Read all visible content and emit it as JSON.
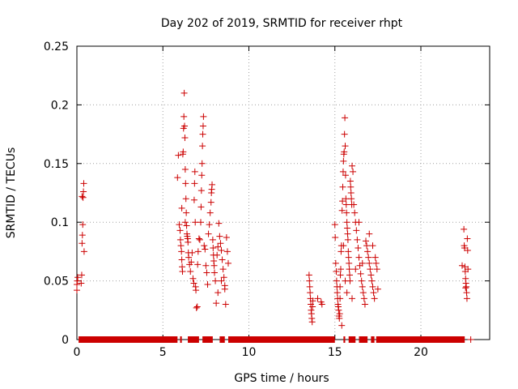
{
  "chart_data": {
    "type": "scatter",
    "title": "Day 202 of 2019, SRMTID for receiver rhpt",
    "xlabel": "GPS time / hours",
    "ylabel": "SRMTID / TECUs",
    "xlim": [
      0,
      24
    ],
    "ylim": [
      0,
      0.25
    ],
    "xticks": [
      0,
      5,
      10,
      15,
      20
    ],
    "xtick_labels": [
      "0",
      "5",
      "10",
      "15",
      "20"
    ],
    "yticks": [
      0,
      0.05,
      0.1,
      0.15,
      0.2,
      0.25
    ],
    "ytick_labels": [
      "0",
      "0.05",
      "0.1",
      "0.15",
      "0.2",
      "0.25"
    ],
    "grid": true,
    "marker": "plus",
    "color": "#cc0000",
    "series": [
      {
        "name": "SRMTID",
        "points": [
          [
            0.0,
            0.042
          ],
          [
            0.0,
            0.047
          ],
          [
            0.02,
            0.05
          ],
          [
            0.05,
            0.053
          ],
          [
            0.25,
            0.048
          ],
          [
            0.28,
            0.055
          ],
          [
            0.3,
            0.082
          ],
          [
            0.32,
            0.089
          ],
          [
            0.34,
            0.098
          ],
          [
            0.36,
            0.121
          ],
          [
            0.38,
            0.126
          ],
          [
            0.4,
            0.133
          ],
          [
            0.42,
            0.075
          ],
          [
            0.3,
            0.122
          ],
          [
            5.85,
            0.138
          ],
          [
            5.9,
            0.157
          ],
          [
            5.95,
            0.098
          ],
          [
            6.0,
            0.093
          ],
          [
            6.02,
            0.085
          ],
          [
            6.05,
            0.08
          ],
          [
            6.08,
            0.075
          ],
          [
            6.1,
            0.068
          ],
          [
            6.12,
            0.062
          ],
          [
            6.14,
            0.058
          ],
          [
            6.16,
            0.158
          ],
          [
            6.18,
            0.16
          ],
          [
            6.2,
            0.18
          ],
          [
            6.22,
            0.19
          ],
          [
            6.24,
            0.21
          ],
          [
            6.26,
            0.182
          ],
          [
            6.28,
            0.172
          ],
          [
            6.3,
            0.145
          ],
          [
            6.32,
            0.133
          ],
          [
            6.34,
            0.12
          ],
          [
            6.36,
            0.108
          ],
          [
            6.38,
            0.097
          ],
          [
            6.4,
            0.09
          ],
          [
            6.42,
            0.088
          ],
          [
            6.44,
            0.086
          ],
          [
            6.46,
            0.083
          ],
          [
            6.48,
            0.074
          ],
          [
            6.5,
            0.07
          ],
          [
            6.1,
            0.112
          ],
          [
            6.3,
            0.1
          ],
          [
            6.55,
            0.064
          ],
          [
            6.6,
            0.058
          ],
          [
            6.65,
            0.066
          ],
          [
            6.7,
            0.074
          ],
          [
            6.75,
            0.052
          ],
          [
            6.8,
            0.048
          ],
          [
            6.82,
            0.119
          ],
          [
            6.84,
            0.133
          ],
          [
            6.86,
            0.143
          ],
          [
            6.88,
            0.1
          ],
          [
            6.9,
            0.045
          ],
          [
            6.92,
            0.042
          ],
          [
            6.95,
            0.027
          ],
          [
            7.0,
            0.028
          ],
          [
            7.02,
            0.064
          ],
          [
            7.05,
            0.075
          ],
          [
            7.1,
            0.086
          ],
          [
            7.15,
            0.085
          ],
          [
            7.2,
            0.1
          ],
          [
            7.22,
            0.113
          ],
          [
            7.24,
            0.127
          ],
          [
            7.26,
            0.14
          ],
          [
            7.28,
            0.15
          ],
          [
            7.3,
            0.165
          ],
          [
            7.32,
            0.175
          ],
          [
            7.34,
            0.182
          ],
          [
            7.36,
            0.19
          ],
          [
            7.4,
            0.08
          ],
          [
            7.45,
            0.077
          ],
          [
            7.5,
            0.063
          ],
          [
            7.55,
            0.057
          ],
          [
            7.6,
            0.047
          ],
          [
            7.65,
            0.09
          ],
          [
            7.7,
            0.098
          ],
          [
            7.75,
            0.108
          ],
          [
            7.8,
            0.117
          ],
          [
            7.82,
            0.125
          ],
          [
            7.84,
            0.128
          ],
          [
            7.86,
            0.132
          ],
          [
            7.9,
            0.085
          ],
          [
            7.92,
            0.078
          ],
          [
            7.94,
            0.072
          ],
          [
            7.96,
            0.067
          ],
          [
            7.98,
            0.063
          ],
          [
            8.0,
            0.057
          ],
          [
            8.05,
            0.05
          ],
          [
            8.1,
            0.031
          ],
          [
            8.15,
            0.072
          ],
          [
            8.2,
            0.079
          ],
          [
            8.25,
            0.099
          ],
          [
            8.3,
            0.088
          ],
          [
            8.35,
            0.082
          ],
          [
            8.4,
            0.076
          ],
          [
            8.45,
            0.068
          ],
          [
            8.5,
            0.06
          ],
          [
            8.55,
            0.053
          ],
          [
            8.6,
            0.046
          ],
          [
            8.65,
            0.03
          ],
          [
            8.7,
            0.087
          ],
          [
            8.75,
            0.075
          ],
          [
            8.8,
            0.065
          ],
          [
            8.6,
            0.043
          ],
          [
            8.4,
            0.05
          ],
          [
            8.2,
            0.04
          ],
          [
            13.5,
            0.055
          ],
          [
            13.52,
            0.05
          ],
          [
            13.54,
            0.045
          ],
          [
            13.56,
            0.04
          ],
          [
            13.58,
            0.035
          ],
          [
            13.6,
            0.03
          ],
          [
            13.62,
            0.025
          ],
          [
            13.64,
            0.022
          ],
          [
            13.66,
            0.018
          ],
          [
            13.68,
            0.015
          ],
          [
            13.7,
            0.028
          ],
          [
            13.72,
            0.033
          ],
          [
            14.0,
            0.035
          ],
          [
            14.2,
            0.032
          ],
          [
            14.25,
            0.03
          ],
          [
            15.0,
            0.098
          ],
          [
            15.02,
            0.087
          ],
          [
            15.05,
            0.065
          ],
          [
            15.08,
            0.058
          ],
          [
            15.1,
            0.05
          ],
          [
            15.12,
            0.045
          ],
          [
            15.14,
            0.04
          ],
          [
            15.16,
            0.035
          ],
          [
            15.18,
            0.03
          ],
          [
            15.2,
            0.028
          ],
          [
            15.22,
            0.025
          ],
          [
            15.24,
            0.02
          ],
          [
            15.26,
            0.018
          ],
          [
            15.28,
            0.022
          ],
          [
            15.3,
            0.045
          ],
          [
            15.32,
            0.055
          ],
          [
            15.34,
            0.06
          ],
          [
            15.36,
            0.075
          ],
          [
            15.38,
            0.08
          ],
          [
            15.4,
            0.012
          ],
          [
            15.42,
            0.11
          ],
          [
            15.44,
            0.118
          ],
          [
            15.46,
            0.13
          ],
          [
            15.48,
            0.143
          ],
          [
            15.5,
            0.152
          ],
          [
            15.52,
            0.158
          ],
          [
            15.54,
            0.16
          ],
          [
            15.56,
            0.175
          ],
          [
            15.58,
            0.189
          ],
          [
            15.6,
            0.165
          ],
          [
            15.62,
            0.14
          ],
          [
            15.64,
            0.12
          ],
          [
            15.66,
            0.115
          ],
          [
            15.68,
            0.108
          ],
          [
            15.7,
            0.1
          ],
          [
            15.72,
            0.095
          ],
          [
            15.74,
            0.09
          ],
          [
            15.76,
            0.085
          ],
          [
            15.78,
            0.075
          ],
          [
            15.8,
            0.07
          ],
          [
            15.82,
            0.065
          ],
          [
            15.84,
            0.06
          ],
          [
            15.86,
            0.055
          ],
          [
            15.88,
            0.05
          ],
          [
            15.9,
            0.135
          ],
          [
            15.92,
            0.13
          ],
          [
            15.94,
            0.125
          ],
          [
            15.96,
            0.12
          ],
          [
            15.98,
            0.115
          ],
          [
            16.0,
            0.148
          ],
          [
            16.05,
            0.143
          ],
          [
            16.1,
            0.115
          ],
          [
            16.15,
            0.108
          ],
          [
            16.2,
            0.1
          ],
          [
            16.25,
            0.093
          ],
          [
            16.3,
            0.085
          ],
          [
            16.35,
            0.078
          ],
          [
            16.4,
            0.07
          ],
          [
            16.45,
            0.063
          ],
          [
            16.5,
            0.056
          ],
          [
            16.55,
            0.05
          ],
          [
            16.6,
            0.045
          ],
          [
            16.65,
            0.04
          ],
          [
            16.7,
            0.035
          ],
          [
            16.75,
            0.03
          ],
          [
            16.8,
            0.084
          ],
          [
            16.85,
            0.08
          ],
          [
            16.9,
            0.075
          ],
          [
            16.95,
            0.07
          ],
          [
            17.0,
            0.065
          ],
          [
            17.05,
            0.06
          ],
          [
            17.1,
            0.055
          ],
          [
            17.15,
            0.05
          ],
          [
            17.2,
            0.045
          ],
          [
            17.25,
            0.04
          ],
          [
            17.3,
            0.035
          ],
          [
            17.35,
            0.07
          ],
          [
            17.4,
            0.065
          ],
          [
            17.45,
            0.06
          ],
          [
            17.5,
            0.043
          ],
          [
            15.6,
            0.05
          ],
          [
            15.7,
            0.04
          ],
          [
            16.0,
            0.035
          ],
          [
            16.2,
            0.06
          ],
          [
            16.6,
            0.065
          ],
          [
            17.0,
            0.09
          ],
          [
            17.2,
            0.08
          ],
          [
            15.3,
            0.035
          ],
          [
            15.5,
            0.08
          ],
          [
            16.4,
            0.1
          ],
          [
            22.5,
            0.094
          ],
          [
            22.52,
            0.08
          ],
          [
            22.54,
            0.078
          ],
          [
            22.56,
            0.062
          ],
          [
            22.58,
            0.058
          ],
          [
            22.6,
            0.052
          ],
          [
            22.62,
            0.048
          ],
          [
            22.64,
            0.045
          ],
          [
            22.66,
            0.04
          ],
          [
            22.68,
            0.035
          ],
          [
            22.7,
            0.086
          ],
          [
            22.72,
            0.076
          ],
          [
            22.74,
            0.06
          ],
          [
            22.6,
            0.044
          ],
          [
            22.4,
            0.063
          ]
        ]
      },
      {
        "name": "zero-baseline",
        "segments": [
          [
            0.1,
            5.85
          ],
          [
            6.0,
            6.1
          ],
          [
            6.45,
            7.1
          ],
          [
            7.3,
            7.9
          ],
          [
            8.3,
            8.6
          ],
          [
            8.8,
            15.0
          ],
          [
            15.5,
            15.6
          ],
          [
            15.8,
            16.2
          ],
          [
            16.4,
            16.9
          ],
          [
            17.1,
            17.3
          ],
          [
            17.4,
            22.55
          ]
        ],
        "single_points": [
          22.9
        ]
      }
    ]
  }
}
